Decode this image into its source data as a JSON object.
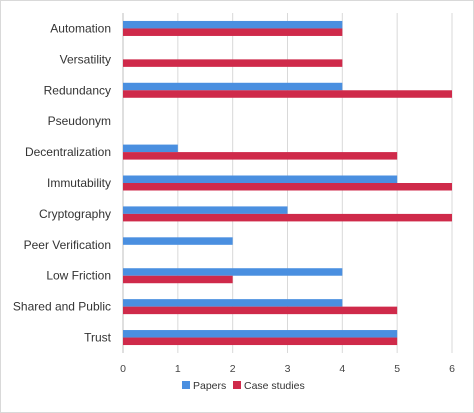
{
  "chart_data": {
    "type": "bar",
    "orientation": "horizontal",
    "categories": [
      "Automation",
      "Versatility",
      "Redundancy",
      "Pseudonym",
      "Decentralization",
      "Immutability",
      "Cryptography",
      "Peer Verification",
      "Low Friction",
      "Shared and Public",
      "Trust"
    ],
    "series": [
      {
        "name": "Papers",
        "color": "#4a8fe0",
        "values": [
          4,
          0,
          4,
          0,
          1,
          5,
          3,
          2,
          4,
          4,
          5
        ]
      },
      {
        "name": "Case studies",
        "color": "#cf2a4a",
        "values": [
          4,
          4,
          6,
          0,
          5,
          6,
          6,
          0,
          2,
          5,
          5
        ]
      }
    ],
    "xticks": [
      "0",
      "1",
      "2",
      "3",
      "4",
      "5",
      "6"
    ],
    "xlim": [
      0,
      6
    ],
    "grid": true,
    "legend": "bottom-center"
  }
}
